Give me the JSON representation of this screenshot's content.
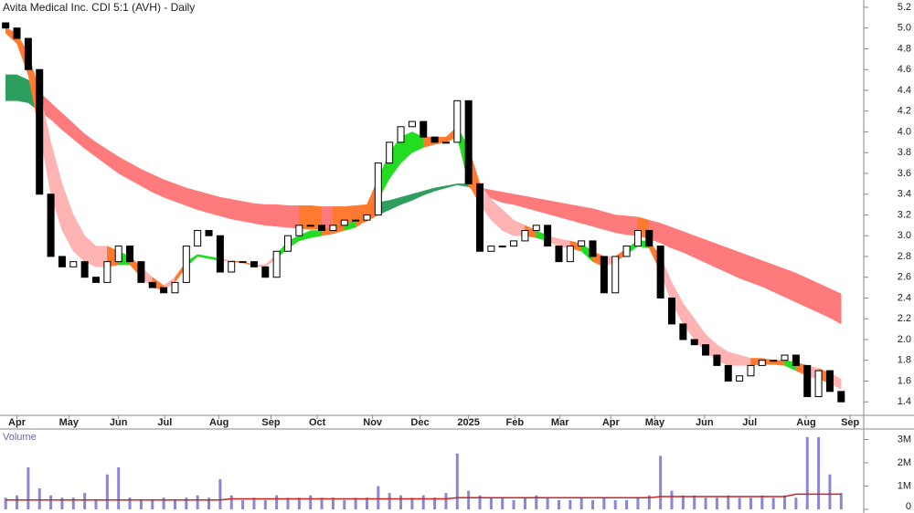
{
  "chart_data": {
    "type": "candlestick",
    "title": "Avita Medical Inc. CDI 5:1 (AVH) - Daily",
    "x": [
      0,
      1,
      2,
      3,
      4,
      5,
      6,
      7,
      8,
      9,
      10,
      11,
      12,
      13,
      14,
      15,
      16,
      17,
      18,
      19,
      20,
      21,
      22,
      23,
      24,
      25,
      26,
      27,
      28,
      29,
      30,
      31,
      32,
      33,
      34,
      35,
      36,
      37,
      38,
      39,
      40,
      41,
      42,
      43,
      44,
      45,
      46,
      47,
      48,
      49,
      50,
      51,
      52,
      53,
      54,
      55,
      56,
      57,
      58,
      59,
      60,
      61,
      62,
      63,
      64,
      65,
      66,
      67,
      68,
      69,
      70,
      71,
      72,
      73,
      74
    ],
    "open": [
      5.05,
      5.0,
      4.9,
      4.6,
      3.4,
      2.8,
      2.7,
      2.75,
      2.6,
      2.55,
      2.75,
      2.9,
      2.75,
      2.55,
      2.5,
      2.45,
      2.55,
      2.9,
      3.05,
      3.0,
      2.65,
      2.75,
      2.75,
      2.7,
      2.6,
      2.85,
      3.0,
      3.1,
      3.1,
      3.05,
      3.1,
      3.15,
      3.15,
      3.2,
      3.7,
      3.9,
      4.05,
      4.1,
      3.95,
      3.9,
      3.9,
      4.3,
      3.5,
      2.85,
      2.9,
      2.9,
      2.95,
      3.05,
      3.1,
      2.9,
      2.75,
      2.9,
      2.95,
      2.8,
      2.45,
      2.8,
      2.9,
      3.05,
      2.9,
      2.4,
      2.15,
      2.0,
      1.95,
      1.85,
      1.75,
      1.6,
      1.65,
      1.75,
      1.8,
      1.8,
      1.85,
      1.75,
      1.45,
      1.7,
      1.5
    ],
    "close": [
      5.0,
      4.9,
      4.6,
      3.4,
      2.8,
      2.7,
      2.75,
      2.6,
      2.55,
      2.75,
      2.9,
      2.75,
      2.55,
      2.5,
      2.45,
      2.55,
      2.9,
      3.05,
      3.0,
      2.65,
      2.75,
      2.75,
      2.7,
      2.6,
      2.85,
      3.0,
      3.1,
      3.1,
      3.05,
      3.1,
      3.15,
      3.15,
      3.2,
      3.7,
      3.9,
      4.05,
      4.1,
      3.95,
      3.9,
      3.9,
      4.3,
      3.5,
      2.85,
      2.9,
      2.9,
      2.95,
      3.05,
      3.1,
      2.9,
      2.75,
      2.9,
      2.95,
      2.8,
      2.45,
      2.8,
      2.9,
      3.05,
      2.9,
      2.4,
      2.15,
      2.0,
      1.95,
      1.85,
      1.75,
      1.6,
      1.65,
      1.75,
      1.8,
      1.8,
      1.85,
      1.75,
      1.45,
      1.7,
      1.5,
      1.4
    ],
    "short_ribbon": {
      "upper": [
        5.0,
        4.95,
        4.75,
        4.4,
        3.9,
        3.5,
        3.2,
        3.0,
        2.9,
        2.9,
        2.85,
        2.8,
        2.7,
        2.6,
        2.52,
        2.6,
        2.75,
        2.82,
        2.8,
        2.78,
        2.76,
        2.75,
        2.72,
        2.72,
        2.82,
        2.95,
        3.0,
        3.05,
        3.05,
        3.1,
        3.1,
        3.15,
        3.3,
        3.55,
        3.8,
        3.95,
        4.0,
        3.95,
        3.95,
        3.95,
        4.05,
        3.85,
        3.5,
        3.35,
        3.25,
        3.15,
        3.1,
        3.05,
        3.0,
        2.97,
        2.95,
        2.92,
        2.85,
        2.8,
        2.8,
        2.88,
        2.95,
        2.95,
        2.8,
        2.55,
        2.35,
        2.2,
        2.05,
        1.95,
        1.88,
        1.85,
        1.82,
        1.82,
        1.8,
        1.8,
        1.78,
        1.75,
        1.72,
        1.68,
        1.62
      ],
      "lower": [
        4.95,
        4.85,
        4.55,
        4.0,
        3.4,
        3.05,
        2.85,
        2.75,
        2.7,
        2.7,
        2.72,
        2.72,
        2.6,
        2.5,
        2.48,
        2.55,
        2.7,
        2.8,
        2.78,
        2.76,
        2.75,
        2.74,
        2.71,
        2.7,
        2.78,
        2.88,
        2.95,
        2.98,
        3.0,
        3.02,
        3.05,
        3.08,
        3.15,
        3.35,
        3.55,
        3.7,
        3.8,
        3.85,
        3.88,
        3.9,
        3.95,
        3.5,
        3.3,
        3.15,
        3.05,
        3.0,
        3.0,
        2.98,
        2.95,
        2.9,
        2.88,
        2.85,
        2.75,
        2.7,
        2.75,
        2.82,
        2.9,
        2.88,
        2.65,
        2.35,
        2.15,
        2.0,
        1.88,
        1.8,
        1.75,
        1.75,
        1.75,
        1.76,
        1.76,
        1.75,
        1.7,
        1.65,
        1.62,
        1.58,
        1.52
      ],
      "colors": {
        "above": "#22dd22",
        "inside": "#ff7a2e",
        "below": "#ffb3b3"
      }
    },
    "long_ribbon": {
      "upper": [
        4.55,
        4.55,
        4.5,
        4.38,
        4.28,
        4.18,
        4.08,
        3.98,
        3.9,
        3.83,
        3.76,
        3.7,
        3.64,
        3.59,
        3.54,
        3.5,
        3.46,
        3.43,
        3.4,
        3.37,
        3.35,
        3.33,
        3.31,
        3.3,
        3.3,
        3.29,
        3.29,
        3.29,
        3.28,
        3.28,
        3.28,
        3.29,
        3.3,
        3.32,
        3.34,
        3.37,
        3.4,
        3.43,
        3.46,
        3.48,
        3.5,
        3.5,
        3.46,
        3.44,
        3.42,
        3.4,
        3.38,
        3.36,
        3.34,
        3.32,
        3.3,
        3.28,
        3.26,
        3.23,
        3.2,
        3.19,
        3.18,
        3.15,
        3.12,
        3.08,
        3.04,
        3.0,
        2.96,
        2.92,
        2.88,
        2.84,
        2.8,
        2.76,
        2.72,
        2.68,
        2.64,
        2.59,
        2.54,
        2.49,
        2.44
      ],
      "lower": [
        4.3,
        4.3,
        4.28,
        4.2,
        4.12,
        4.02,
        3.93,
        3.84,
        3.76,
        3.68,
        3.6,
        3.54,
        3.48,
        3.42,
        3.37,
        3.33,
        3.29,
        3.25,
        3.22,
        3.19,
        3.16,
        3.14,
        3.12,
        3.1,
        3.09,
        3.08,
        3.07,
        3.06,
        3.06,
        3.06,
        3.07,
        3.1,
        3.14,
        3.2,
        3.25,
        3.3,
        3.34,
        3.39,
        3.43,
        3.46,
        3.49,
        3.47,
        3.4,
        3.36,
        3.32,
        3.3,
        3.27,
        3.24,
        3.21,
        3.18,
        3.15,
        3.12,
        3.09,
        3.06,
        3.03,
        3.01,
        3.0,
        2.97,
        2.93,
        2.88,
        2.84,
        2.79,
        2.74,
        2.69,
        2.64,
        2.59,
        2.55,
        2.51,
        2.46,
        2.41,
        2.36,
        2.31,
        2.26,
        2.21,
        2.15
      ],
      "colors": {
        "above": "#2e9e5e",
        "inside": "#ff7a2e",
        "below": "#ff7a7a"
      }
    },
    "xlim": [
      -0.5,
      76
    ],
    "xticks": [
      {
        "value": 1.0,
        "label": "Apr"
      },
      {
        "value": 5.6,
        "label": "May"
      },
      {
        "value": 10.0,
        "label": "Jun"
      },
      {
        "value": 14.1,
        "label": "Jul"
      },
      {
        "value": 18.9,
        "label": "Aug"
      },
      {
        "value": 23.5,
        "label": "Sep"
      },
      {
        "value": 27.6,
        "label": "Oct"
      },
      {
        "value": 32.5,
        "label": "Nov"
      },
      {
        "value": 36.7,
        "label": "Dec"
      },
      {
        "value": 41.0,
        "label": "2025"
      },
      {
        "value": 45.1,
        "label": "Feb"
      },
      {
        "value": 49.1,
        "label": "Mar"
      },
      {
        "value": 53.6,
        "label": "Apr"
      },
      {
        "value": 57.5,
        "label": "May"
      },
      {
        "value": 61.9,
        "label": "Jun"
      },
      {
        "value": 65.9,
        "label": "Jul"
      },
      {
        "value": 70.9,
        "label": "Aug"
      },
      {
        "value": 74.8,
        "label": "Sep"
      }
    ],
    "ylim": [
      1.27,
      5.27
    ],
    "yticks": [
      1.4,
      1.6,
      1.8,
      {
        "value": 2,
        "label": "2.0"
      },
      2.2,
      2.4,
      2.6,
      2.8,
      {
        "value": 3,
        "label": "3.0"
      },
      3.2,
      3.4,
      3.6,
      3.8,
      {
        "value": 4,
        "label": "4.0"
      },
      4.2,
      4.4,
      4.6,
      4.8,
      {
        "value": 5,
        "label": "5.0"
      },
      5.2
    ],
    "volume": {
      "label": "Volume",
      "color": "#8a86d6",
      "ma_color": "#cc2222",
      "values": [
        500000,
        600000,
        1800000,
        900000,
        600000,
        500000,
        500000,
        700000,
        400000,
        1500000,
        1800000,
        500000,
        400000,
        400000,
        500000,
        400000,
        500000,
        600000,
        500000,
        1300000,
        600000,
        400000,
        500000,
        400000,
        600000,
        500000,
        500000,
        600000,
        500000,
        500000,
        400000,
        500000,
        500000,
        1000000,
        700000,
        600000,
        500000,
        600000,
        500000,
        700000,
        2400000,
        800000,
        600000,
        500000,
        500000,
        400000,
        500000,
        600000,
        500000,
        400000,
        400000,
        500000,
        400000,
        500000,
        400000,
        400000,
        500000,
        600000,
        2300000,
        800000,
        600000,
        600000,
        500000,
        500000,
        600000,
        500000,
        500000,
        600000,
        500000,
        600000,
        500000,
        3100000,
        3100000,
        1500000,
        700000
      ],
      "ma": [
        400000,
        400000,
        400000,
        400000,
        400000,
        400000,
        400000,
        400000,
        400000,
        400000,
        400000,
        400000,
        400000,
        400000,
        400000,
        400000,
        400000,
        400000,
        400000,
        400000,
        450000,
        450000,
        450000,
        450000,
        450000,
        450000,
        450000,
        450000,
        450000,
        450000,
        450000,
        450000,
        450000,
        450000,
        450000,
        450000,
        450000,
        450000,
        450000,
        450000,
        500000,
        500000,
        500000,
        500000,
        500000,
        500000,
        500000,
        500000,
        500000,
        500000,
        500000,
        500000,
        500000,
        500000,
        500000,
        500000,
        500000,
        500000,
        550000,
        550000,
        550000,
        550000,
        550000,
        550000,
        550000,
        550000,
        550000,
        550000,
        550000,
        550000,
        650000,
        650000,
        650000,
        650000,
        650000
      ],
      "ylim": [
        0,
        3450000
      ],
      "yticks": [
        0,
        {
          "value": 1000000,
          "label": "1M"
        },
        {
          "value": 2000000,
          "label": "2M"
        },
        {
          "value": 3000000,
          "label": "3M"
        }
      ]
    }
  }
}
